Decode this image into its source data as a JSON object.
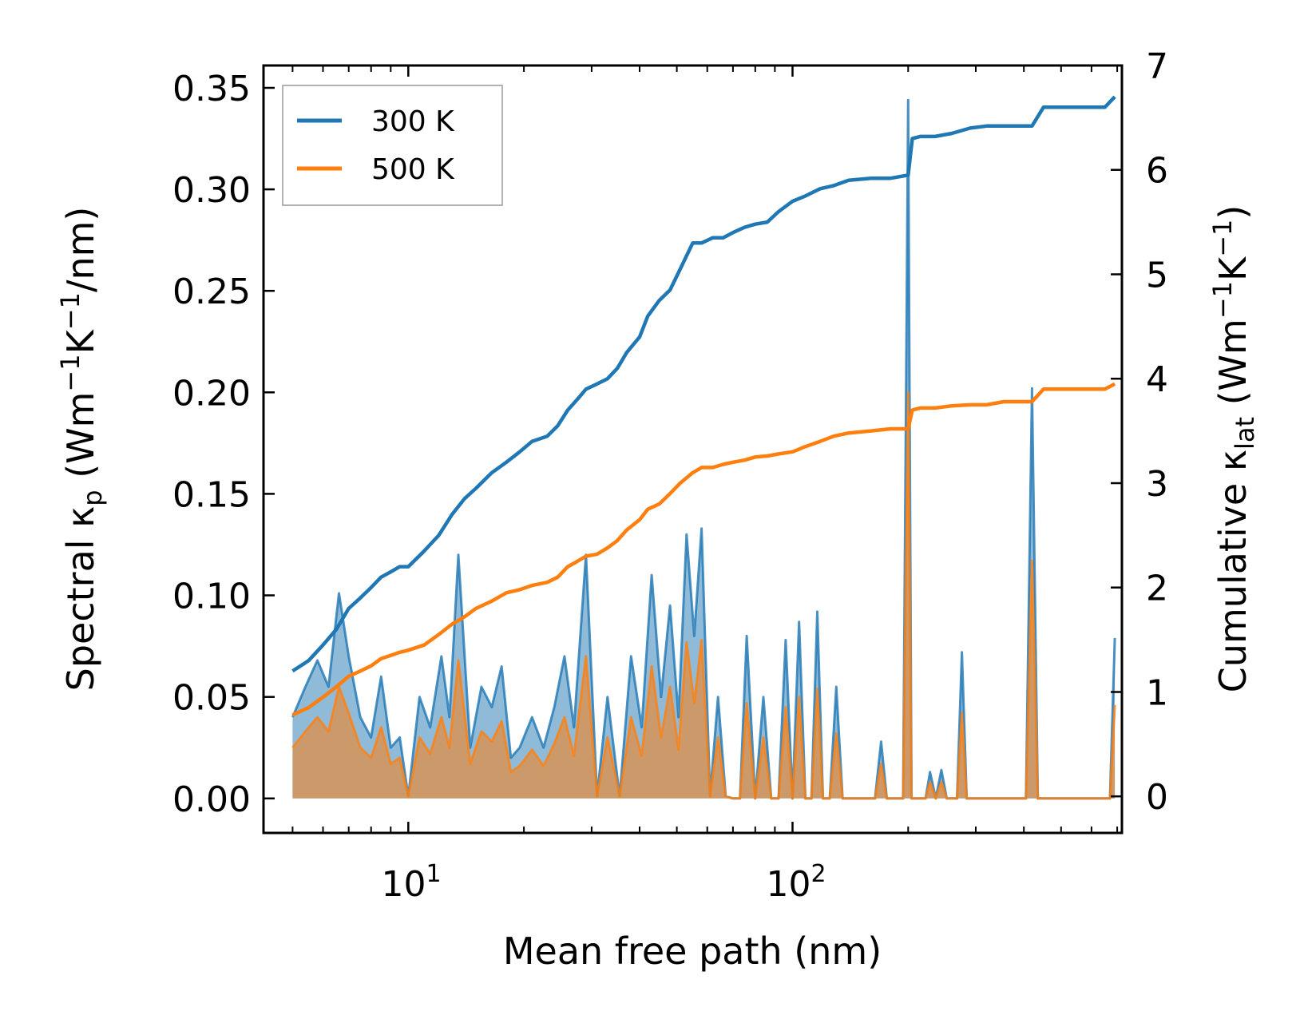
{
  "chart_data": {
    "type": "line",
    "title": "",
    "xlabel": "Mean free path (nm)",
    "xscale": "log",
    "xlim": [
      4.2,
      720
    ],
    "x_ticks": [
      {
        "base": "10",
        "exp": "1"
      },
      {
        "base": "10",
        "exp": "2"
      }
    ],
    "ylabel_left": {
      "prefix": "Spectral κ",
      "sub": "p",
      "units_pre": " (Wm",
      "sup1": "−1",
      "units_mid": "K",
      "sup2": "−1",
      "units_post": "/nm)"
    },
    "ylim_left": [
      -0.017,
      0.361
    ],
    "yticks_left": [
      "0.00",
      "0.05",
      "0.10",
      "0.15",
      "0.20",
      "0.25",
      "0.30",
      "0.35"
    ],
    "ylabel_right": {
      "prefix": "Cumulative κ",
      "sub": "lat",
      "units_pre": " (Wm",
      "sup1": "−1",
      "units_mid": "K",
      "sup2": "−1",
      "units_post": ")"
    },
    "ylim_right": [
      -0.35,
      7.0
    ],
    "yticks_right": [
      "0",
      "1",
      "2",
      "3",
      "4",
      "5",
      "6",
      "7"
    ],
    "legend": {
      "position": "upper-left",
      "entries": [
        {
          "label": "300 K",
          "color": "#1f77b4"
        },
        {
          "label": "500 K",
          "color": "#ff7f0e"
        }
      ]
    },
    "spectral": {
      "x": [
        5.0,
        5.4,
        5.8,
        6.2,
        6.6,
        7.0,
        7.5,
        8.0,
        8.5,
        9.0,
        9.5,
        10.0,
        10.7,
        11.4,
        12.2,
        12.8,
        13.5,
        14.5,
        15.5,
        16.5,
        17.5,
        18.5,
        19.5,
        21,
        22.5,
        24,
        25.5,
        27,
        29,
        31,
        33,
        35.5,
        38,
        40.5,
        43,
        45.5,
        48,
        50.5,
        53,
        55.5,
        58,
        61,
        64,
        67,
        70,
        73,
        76,
        80,
        84,
        88,
        92,
        96,
        100,
        104,
        108,
        112,
        116,
        120,
        125,
        130,
        135,
        140,
        146,
        152,
        158,
        164,
        170,
        176,
        182,
        188,
        194,
        200,
        204,
        208,
        212,
        216,
        222,
        228,
        236,
        244,
        252,
        260,
        268,
        276,
        284,
        292,
        300,
        310,
        320,
        330,
        345,
        360,
        375,
        390,
        405,
        420,
        435,
        450,
        465,
        480,
        495,
        510,
        525,
        540,
        555,
        570,
        585,
        600,
        615,
        630,
        650,
        670,
        690
      ],
      "series": [
        {
          "name": "300 K",
          "color": "#1f77b4",
          "values": [
            0.04,
            0.055,
            0.068,
            0.055,
            0.101,
            0.07,
            0.04,
            0.03,
            0.06,
            0.025,
            0.03,
            0.001,
            0.05,
            0.035,
            0.07,
            0.04,
            0.12,
            0.025,
            0.055,
            0.045,
            0.065,
            0.02,
            0.025,
            0.04,
            0.025,
            0.045,
            0.07,
            0.035,
            0.12,
            0.001,
            0.05,
            0.001,
            0.07,
            0.035,
            0.11,
            0.05,
            0.095,
            0.04,
            0.13,
            0.08,
            0.133,
            0.001,
            0.05,
            0.001,
            0.0,
            0.0,
            0.08,
            0.0,
            0.05,
            0.0,
            0.0,
            0.078,
            0.0,
            0.087,
            0.0,
            0.0,
            0.092,
            0.0,
            0.0,
            0.055,
            0.0,
            0.0,
            0.0,
            0.0,
            0.0,
            0.0,
            0.028,
            0.0,
            0.0,
            0.0,
            0.0,
            0.344,
            0.0,
            0.0,
            0.0,
            0.0,
            0.0,
            0.013,
            0.0,
            0.014,
            0.0,
            0.0,
            0.0,
            0.072,
            0.0,
            0.0,
            0.0,
            0.0,
            0.0,
            0.0,
            0.0,
            0.0,
            0.0,
            0.0,
            0.0,
            0.202,
            0.0,
            0.0,
            0.0,
            0.0,
            0.0,
            0.0,
            0.0,
            0.0,
            0.0,
            0.0,
            0.0,
            0.0,
            0.0,
            0.0,
            0.0,
            0.0,
            0.079
          ]
        },
        {
          "name": "500 K",
          "color": "#ff7f0e",
          "values": [
            0.025,
            0.033,
            0.04,
            0.033,
            0.055,
            0.042,
            0.025,
            0.02,
            0.035,
            0.017,
            0.02,
            0.001,
            0.03,
            0.022,
            0.04,
            0.025,
            0.068,
            0.017,
            0.033,
            0.028,
            0.038,
            0.013,
            0.016,
            0.024,
            0.016,
            0.027,
            0.04,
            0.021,
            0.07,
            0.001,
            0.03,
            0.001,
            0.04,
            0.021,
            0.065,
            0.03,
            0.055,
            0.024,
            0.077,
            0.047,
            0.078,
            0.001,
            0.03,
            0.001,
            0.0,
            0.0,
            0.047,
            0.0,
            0.03,
            0.0,
            0.0,
            0.045,
            0.0,
            0.05,
            0.0,
            0.0,
            0.054,
            0.0,
            0.0,
            0.032,
            0.0,
            0.0,
            0.0,
            0.0,
            0.0,
            0.0,
            0.017,
            0.0,
            0.0,
            0.0,
            0.0,
            0.2,
            0.0,
            0.0,
            0.0,
            0.0,
            0.0,
            0.008,
            0.0,
            0.008,
            0.0,
            0.0,
            0.0,
            0.042,
            0.0,
            0.0,
            0.0,
            0.0,
            0.0,
            0.0,
            0.0,
            0.0,
            0.0,
            0.0,
            0.0,
            0.117,
            0.0,
            0.0,
            0.0,
            0.0,
            0.0,
            0.0,
            0.0,
            0.0,
            0.0,
            0.0,
            0.0,
            0.0,
            0.0,
            0.0,
            0.0,
            0.0,
            0.046
          ]
        }
      ]
    },
    "cumulative": {
      "series": [
        {
          "name": "300 K",
          "color": "#1f77b4",
          "x": [
            5,
            5.5,
            6,
            6.5,
            7,
            7.5,
            8,
            8.5,
            9,
            9.5,
            10,
            11,
            12,
            13,
            14,
            15,
            16.5,
            18,
            19.5,
            21,
            23,
            24.5,
            26,
            27.5,
            29,
            31,
            33,
            35,
            37,
            40,
            42,
            45,
            48,
            51,
            55,
            58,
            62,
            66,
            70,
            75,
            80,
            86,
            92,
            100,
            108,
            118,
            128,
            140,
            160,
            180,
            200,
            205,
            215,
            235,
            260,
            290,
            320,
            355,
            390,
            420,
            450,
            500,
            550,
            600,
            650,
            690
          ],
          "values": [
            1.2,
            1.3,
            1.45,
            1.6,
            1.8,
            1.9,
            2.0,
            2.1,
            2.15,
            2.2,
            2.2,
            2.35,
            2.5,
            2.7,
            2.85,
            2.95,
            3.1,
            3.2,
            3.3,
            3.4,
            3.45,
            3.55,
            3.7,
            3.8,
            3.9,
            3.95,
            4.0,
            4.1,
            4.25,
            4.4,
            4.6,
            4.75,
            4.85,
            5.05,
            5.3,
            5.3,
            5.35,
            5.35,
            5.4,
            5.45,
            5.48,
            5.5,
            5.6,
            5.7,
            5.75,
            5.82,
            5.85,
            5.9,
            5.92,
            5.92,
            5.95,
            6.3,
            6.32,
            6.32,
            6.35,
            6.4,
            6.42,
            6.42,
            6.42,
            6.42,
            6.6,
            6.6,
            6.6,
            6.6,
            6.6,
            6.7
          ]
        },
        {
          "name": "500 K",
          "color": "#ff7f0e",
          "x": [
            5,
            5.5,
            6,
            6.5,
            7,
            7.5,
            8,
            8.5,
            9,
            9.5,
            10,
            11,
            12,
            13,
            14,
            15,
            16.5,
            18,
            19.5,
            21,
            23,
            24.5,
            26,
            27.5,
            29,
            31,
            33,
            35,
            37,
            40,
            42,
            45,
            48,
            51,
            55,
            58,
            62,
            66,
            70,
            75,
            80,
            86,
            92,
            100,
            108,
            118,
            128,
            140,
            160,
            180,
            200,
            205,
            215,
            235,
            260,
            290,
            320,
            355,
            390,
            420,
            450,
            500,
            550,
            600,
            650,
            690
          ],
          "values": [
            0.78,
            0.85,
            0.95,
            1.05,
            1.15,
            1.2,
            1.25,
            1.32,
            1.35,
            1.38,
            1.4,
            1.45,
            1.55,
            1.65,
            1.72,
            1.8,
            1.87,
            1.95,
            1.98,
            2.02,
            2.05,
            2.1,
            2.2,
            2.25,
            2.3,
            2.32,
            2.38,
            2.45,
            2.55,
            2.65,
            2.75,
            2.8,
            2.9,
            3.0,
            3.1,
            3.15,
            3.15,
            3.18,
            3.2,
            3.22,
            3.25,
            3.26,
            3.28,
            3.3,
            3.35,
            3.4,
            3.45,
            3.48,
            3.5,
            3.52,
            3.52,
            3.7,
            3.72,
            3.72,
            3.74,
            3.75,
            3.75,
            3.78,
            3.78,
            3.78,
            3.9,
            3.9,
            3.9,
            3.9,
            3.9,
            3.95
          ]
        }
      ]
    }
  }
}
